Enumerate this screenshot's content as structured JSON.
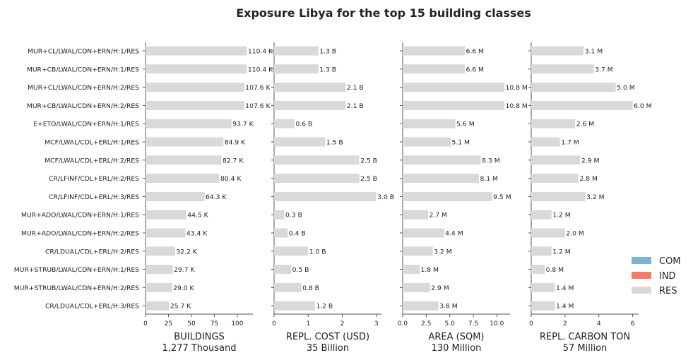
{
  "chart_data": {
    "type": "bar",
    "orientation": "horizontal",
    "title": "Exposure Libya for the top 15 building classes",
    "categories": [
      "MUR+CL/LWAL/CDN+ERN/H:1/RES",
      "MUR+CB/LWAL/CDN+ERN/H:1/RES",
      "MUR+CL/LWAL/CDN+ERN/H:2/RES",
      "MUR+CB/LWAL/CDN+ERN/H:2/RES",
      "E+ETO/LWAL/CDN+ERN/H:1/RES",
      "MCF/LWAL/CDL+ERL/H:1/RES",
      "MCF/LWAL/CDL+ERL/H:2/RES",
      "CR/LFINF/CDL+ERL/H:2/RES",
      "CR/LFINF/CDL+ERL/H:3/RES",
      "MUR+ADO/LWAL/CDN+ERN/H:1/RES",
      "MUR+ADO/LWAL/CDN+ERN/H:2/RES",
      "CR/LDUAL/CDL+ERL/H:2/RES",
      "MUR+STRUB/LWAL/CDN+ERN/H:1/RES",
      "MUR+STRUB/LWAL/CDN+ERN/H:2/RES",
      "CR/LDUAL/CDL+ERL/H:3/RES"
    ],
    "occupancy": [
      "RES",
      "RES",
      "RES",
      "RES",
      "RES",
      "RES",
      "RES",
      "RES",
      "RES",
      "RES",
      "RES",
      "RES",
      "RES",
      "RES",
      "RES"
    ],
    "legend": {
      "placement": "right",
      "entries": [
        {
          "name": "COM",
          "color": "#7fb1d4"
        },
        {
          "name": "IND",
          "color": "#f47c6c"
        },
        {
          "name": "RES",
          "color": "#d9d9d9"
        }
      ]
    },
    "panels": [
      {
        "xlabel": "BUILDINGS",
        "total": "1,277 Thousand",
        "xlim": [
          0,
          117
        ],
        "ticks": [
          0,
          25,
          50,
          75,
          100
        ],
        "tick_labels": [
          "0",
          "25",
          "50",
          "75",
          "100"
        ],
        "values": [
          110.4,
          110.4,
          107.6,
          107.6,
          93.7,
          84.9,
          82.7,
          80.4,
          64.3,
          44.5,
          43.4,
          32.2,
          29.7,
          29.0,
          25.7
        ],
        "labels": [
          "110.4 K",
          "110.4 K",
          "107.6 K",
          "107.6 K",
          "93.7 K",
          "84.9 K",
          "82.7 K",
          "80.4 K",
          "64.3 K",
          "44.5 K",
          "43.4 K",
          "32.2 K",
          "29.7 K",
          "29.0 K",
          "25.7 K"
        ]
      },
      {
        "xlabel": "REPL. COST (USD)",
        "total": "35 Billion",
        "xlim": [
          0,
          3.15
        ],
        "ticks": [
          0,
          1,
          2,
          3
        ],
        "tick_labels": [
          "0",
          "1",
          "2",
          "3"
        ],
        "values": [
          1.3,
          1.3,
          2.1,
          2.1,
          0.6,
          1.5,
          2.5,
          2.5,
          3.0,
          0.3,
          0.4,
          1.0,
          0.5,
          0.8,
          1.2
        ],
        "labels": [
          "1.3 B",
          "1.3 B",
          "2.1 B",
          "2.1 B",
          "0.6 B",
          "1.5 B",
          "2.5 B",
          "2.5 B",
          "3.0 B",
          "0.3 B",
          "0.4 B",
          "1.0 B",
          "0.5 B",
          "0.8 B",
          "1.2 B"
        ]
      },
      {
        "xlabel": "AREA (SQM)",
        "total": "130 Million",
        "xlim": [
          0,
          11.4
        ],
        "ticks": [
          0,
          2.5,
          5,
          7.5,
          10
        ],
        "tick_labels": [
          "0.0",
          "2.5",
          "5.0",
          "7.5",
          "10.0"
        ],
        "values": [
          6.6,
          6.6,
          10.8,
          10.8,
          5.6,
          5.1,
          8.3,
          8.1,
          9.5,
          2.7,
          4.4,
          3.2,
          1.8,
          2.9,
          3.8
        ],
        "labels": [
          "6.6 M",
          "6.6 M",
          "10.8 M",
          "10.8 M",
          "5.6 M",
          "5.1 M",
          "8.3 M",
          "8.1 M",
          "9.5 M",
          "2.7 M",
          "4.4 M",
          "3.2 M",
          "1.8 M",
          "2.9 M",
          "3.8 M"
        ]
      },
      {
        "xlabel": "REPL. CARBON TON",
        "total": "57 Million",
        "xlim": [
          0,
          6.35
        ],
        "ticks": [
          0,
          2,
          4,
          6
        ],
        "tick_labels": [
          "0",
          "2",
          "4",
          "6"
        ],
        "values": [
          3.1,
          3.7,
          5.0,
          6.0,
          2.6,
          1.7,
          2.9,
          2.8,
          3.2,
          1.2,
          2.0,
          1.2,
          0.8,
          1.4,
          1.4
        ],
        "labels": [
          "3.1 M",
          "3.7 M",
          "5.0 M",
          "6.0 M",
          "2.6 M",
          "1.7 M",
          "2.9 M",
          "2.8 M",
          "3.2 M",
          "1.2 M",
          "2.0 M",
          "1.2 M",
          "0.8 M",
          "1.4 M",
          "1.4 M"
        ]
      }
    ]
  }
}
